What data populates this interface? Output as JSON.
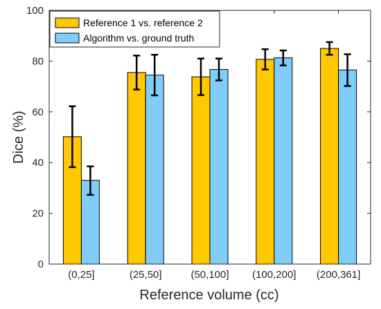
{
  "chart_data": {
    "type": "bar",
    "title": "",
    "xlabel": "Reference volume (cc)",
    "ylabel": "Dice (%)",
    "ylim": [
      0,
      100
    ],
    "yticks": [
      0,
      20,
      40,
      60,
      80,
      100
    ],
    "categories": [
      "(0,25]",
      "(25,50]",
      "(50,100]",
      "(100,200]",
      "(200,361]"
    ],
    "series": [
      {
        "name": "Reference 1 vs. reference 2",
        "color": "#FFC800",
        "values": [
          50.2,
          75.5,
          73.8,
          80.7,
          85.0
        ],
        "error_low": [
          38.2,
          68.8,
          66.6,
          76.7,
          82.5
        ],
        "error_high": [
          62.2,
          82.2,
          81.0,
          84.7,
          87.5
        ]
      },
      {
        "name": "Algorithm vs. ground truth",
        "color": "#80CCFA",
        "values": [
          33.0,
          74.5,
          76.7,
          81.3,
          76.5
        ],
        "error_low": [
          27.3,
          66.5,
          72.4,
          78.3,
          70.2
        ],
        "error_high": [
          38.5,
          82.5,
          81.0,
          84.2,
          82.7
        ]
      }
    ],
    "grid": false,
    "legend_position": "top-left"
  }
}
